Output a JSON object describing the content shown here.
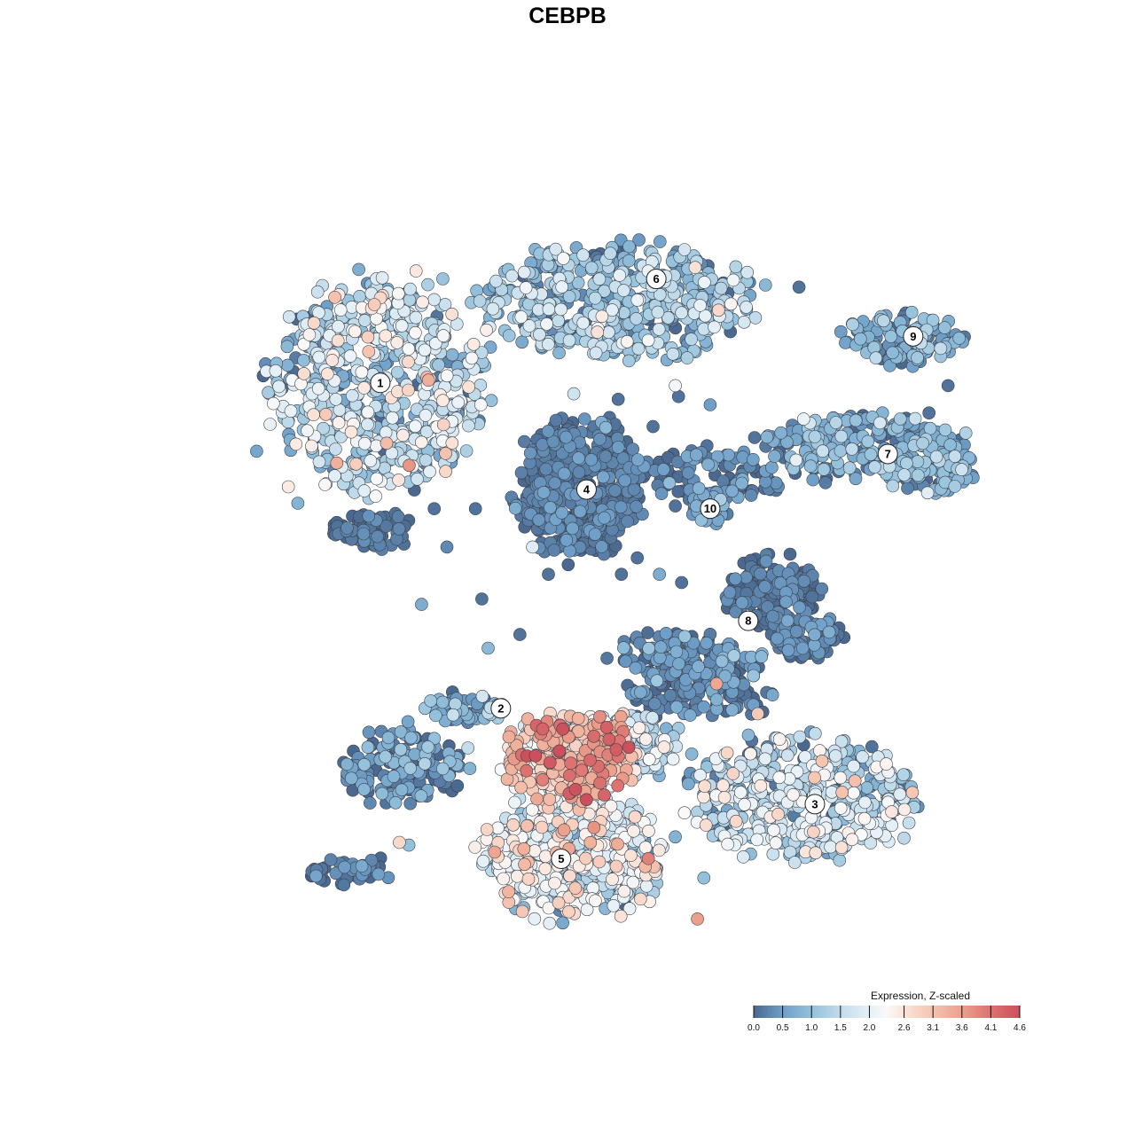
{
  "chart_data": {
    "type": "scatter",
    "title": "CEBPB",
    "xlabel": "",
    "ylabel": "",
    "grid": false,
    "axes_visible": false,
    "legend": {
      "title": "Expression, Z-scaled",
      "placement": "bottom-right",
      "tick_labels": [
        "0.0",
        "0.5",
        "1.0",
        "1.5",
        "2.0",
        "2.6",
        "3.1",
        "3.6",
        "4.1",
        "4.6"
      ],
      "tick_values": [
        0.0,
        0.5,
        1.0,
        1.5,
        2.0,
        2.6,
        3.1,
        3.6,
        4.1,
        4.6
      ],
      "range": [
        0.0,
        4.6
      ]
    },
    "colorscale": [
      {
        "v": 0.0,
        "color": "#4a6890"
      },
      {
        "v": 0.5,
        "color": "#6f9fc8"
      },
      {
        "v": 1.0,
        "color": "#93c0db"
      },
      {
        "v": 1.5,
        "color": "#c2dceb"
      },
      {
        "v": 2.0,
        "color": "#e6f0f7"
      },
      {
        "v": 2.3,
        "color": "#f9f9f9"
      },
      {
        "v": 2.6,
        "color": "#fbe4da"
      },
      {
        "v": 3.1,
        "color": "#f5c3b0"
      },
      {
        "v": 3.6,
        "color": "#eba08c"
      },
      {
        "v": 4.1,
        "color": "#dc7270"
      },
      {
        "v": 4.6,
        "color": "#cb4f5c"
      }
    ],
    "clusters": [
      {
        "label": "1",
        "x": -7.1,
        "y": 7.0
      },
      {
        "label": "2",
        "x": -3.3,
        "y": -4.9
      },
      {
        "label": "3",
        "x": 6.6,
        "y": -8.4
      },
      {
        "label": "4",
        "x": -0.6,
        "y": 3.1
      },
      {
        "label": "5",
        "x": -1.4,
        "y": -10.4
      },
      {
        "label": "6",
        "x": 1.6,
        "y": 10.8
      },
      {
        "label": "7",
        "x": 8.9,
        "y": 4.4
      },
      {
        "label": "8",
        "x": 4.5,
        "y": -1.7
      },
      {
        "label": "9",
        "x": 9.7,
        "y": 8.7
      },
      {
        "label": "10",
        "x": 3.3,
        "y": 2.4
      }
    ],
    "regions": [
      {
        "cluster": "1",
        "cx": -7.1,
        "cy": 7.0,
        "rx": 3.5,
        "ry": 4.1,
        "n": 620,
        "mean": 1.4,
        "sd": 0.7
      },
      {
        "cluster": "1",
        "cx": -7.4,
        "cy": 1.6,
        "rx": 1.4,
        "ry": 0.7,
        "n": 70,
        "mean": 0.1,
        "sd": 0.15
      },
      {
        "cluster": "6",
        "cx": 0.4,
        "cy": 10.0,
        "rx": 4.6,
        "ry": 2.2,
        "n": 520,
        "mean": 1.0,
        "sd": 0.6
      },
      {
        "cluster": "4",
        "cx": -0.8,
        "cy": 3.1,
        "rx": 2.1,
        "ry": 2.7,
        "n": 420,
        "mean": 0.15,
        "sd": 0.2
      },
      {
        "cluster": "10",
        "cx": 3.4,
        "cy": 3.6,
        "rx": 2.2,
        "ry": 1.0,
        "n": 90,
        "mean": 0.25,
        "sd": 0.3
      },
      {
        "cluster": "10",
        "cx": 3.3,
        "cy": 2.4,
        "rx": 0.7,
        "ry": 0.6,
        "n": 30,
        "mean": 0.6,
        "sd": 0.3
      },
      {
        "cluster": "7",
        "cx": 8.2,
        "cy": 4.6,
        "rx": 3.3,
        "ry": 1.3,
        "n": 220,
        "mean": 0.7,
        "sd": 0.5
      },
      {
        "cluster": "7",
        "cx": 10.3,
        "cy": 3.8,
        "rx": 1.6,
        "ry": 0.8,
        "n": 80,
        "mean": 0.8,
        "sd": 0.4
      },
      {
        "cluster": "9",
        "cx": 9.4,
        "cy": 8.6,
        "rx": 2.0,
        "ry": 1.0,
        "n": 130,
        "mean": 0.6,
        "sd": 0.5
      },
      {
        "cluster": "8",
        "cx": 5.2,
        "cy": -0.7,
        "rx": 1.6,
        "ry": 1.5,
        "n": 150,
        "mean": 0.1,
        "sd": 0.2
      },
      {
        "cluster": "8",
        "cx": 6.4,
        "cy": -2.3,
        "rx": 1.3,
        "ry": 0.8,
        "n": 90,
        "mean": 0.15,
        "sd": 0.2
      },
      {
        "cluster": "8",
        "cx": 2.6,
        "cy": -3.0,
        "rx": 2.4,
        "ry": 1.0,
        "n": 130,
        "mean": 0.2,
        "sd": 0.3
      },
      {
        "cluster": "2",
        "cx": -6.3,
        "cy": -7.0,
        "rx": 2.1,
        "ry": 1.5,
        "n": 170,
        "mean": 0.3,
        "sd": 0.5
      },
      {
        "cluster": "2",
        "cx": -4.4,
        "cy": -4.9,
        "rx": 1.4,
        "ry": 0.6,
        "n": 60,
        "mean": 0.6,
        "sd": 0.5
      },
      {
        "cluster": "2",
        "cx": -8.1,
        "cy": -10.8,
        "rx": 1.5,
        "ry": 0.6,
        "n": 40,
        "mean": 0.15,
        "sd": 0.25
      },
      {
        "cluster": "3",
        "cx": 6.2,
        "cy": -8.2,
        "rx": 3.6,
        "ry": 2.4,
        "n": 500,
        "mean": 1.3,
        "sd": 0.7
      },
      {
        "cluster": "3",
        "cx": 3.0,
        "cy": -4.3,
        "rx": 2.4,
        "ry": 1.0,
        "n": 120,
        "mean": 0.2,
        "sd": 0.3
      },
      {
        "cluster": "5",
        "cx": -1.2,
        "cy": -6.7,
        "rx": 2.2,
        "ry": 1.6,
        "n": 350,
        "mean": 2.9,
        "sd": 0.7
      },
      {
        "cluster": "5",
        "cx": -1.1,
        "cy": -10.3,
        "rx": 3.0,
        "ry": 2.4,
        "n": 470,
        "mean": 1.9,
        "sd": 0.7
      },
      {
        "cluster": "5",
        "cx": 0.6,
        "cy": -6.3,
        "rx": 2.0,
        "ry": 1.3,
        "n": 170,
        "mean": 1.6,
        "sd": 0.6
      }
    ],
    "scatter_points": [
      {
        "x": -11.0,
        "y": 4.5,
        "v": 0.6
      },
      {
        "x": -10.0,
        "y": 3.2,
        "v": 2.5
      },
      {
        "x": -9.7,
        "y": 2.6,
        "v": 0.8
      },
      {
        "x": -5.0,
        "y": 1.0,
        "v": 0.3
      },
      {
        "x": -5.4,
        "y": 2.4,
        "v": 0.1
      },
      {
        "x": -4.1,
        "y": 2.4,
        "v": 0.1
      },
      {
        "x": -5.8,
        "y": -1.1,
        "v": 0.7
      },
      {
        "x": -3.9,
        "y": -0.9,
        "v": 0.1
      },
      {
        "x": -2.3,
        "y": 1.0,
        "v": 1.9
      },
      {
        "x": 1.0,
        "y": 0.6,
        "v": 0.1
      },
      {
        "x": 0.5,
        "y": 0.0,
        "v": 0.1
      },
      {
        "x": 1.7,
        "y": 0.0,
        "v": 0.7
      },
      {
        "x": 2.4,
        "y": -0.3,
        "v": 0.1
      },
      {
        "x": 1.5,
        "y": 5.4,
        "v": 0.1
      },
      {
        "x": 2.3,
        "y": 6.5,
        "v": 0.1
      },
      {
        "x": 3.2,
        "y": 4.7,
        "v": 0.1
      },
      {
        "x": 0.4,
        "y": 6.4,
        "v": 0.1
      },
      {
        "x": 3.3,
        "y": 6.2,
        "v": 0.5
      },
      {
        "x": -1.0,
        "y": 6.6,
        "v": 1.7
      },
      {
        "x": 2.2,
        "y": 6.9,
        "v": 2.2
      },
      {
        "x": 6.1,
        "y": 10.5,
        "v": 0.1
      },
      {
        "x": 10.2,
        "y": 5.9,
        "v": 0.1
      },
      {
        "x": 10.8,
        "y": 6.9,
        "v": 0.1
      },
      {
        "x": 2.2,
        "y": 2.5,
        "v": 0.1
      },
      {
        "x": 5.2,
        "y": 3.1,
        "v": 0.1
      },
      {
        "x": -1.8,
        "y": 0.0,
        "v": 0.1
      },
      {
        "x": -3.7,
        "y": -2.7,
        "v": 0.9
      },
      {
        "x": 6.3,
        "y": 4.5,
        "v": 0.8
      },
      {
        "x": 4.7,
        "y": 5.0,
        "v": 0.1
      },
      {
        "x": 8.4,
        "y": -6.3,
        "v": 0.1
      },
      {
        "x": 3.5,
        "y": -4.0,
        "v": 3.5
      },
      {
        "x": 4.8,
        "y": -5.1,
        "v": 3.0
      },
      {
        "x": 3.2,
        "y": -8.5,
        "v": 0.1
      },
      {
        "x": 4.5,
        "y": -9.5,
        "v": 1.6
      },
      {
        "x": 2.2,
        "y": -9.6,
        "v": 0.8
      },
      {
        "x": 3.1,
        "y": -11.1,
        "v": 1.0
      },
      {
        "x": 2.9,
        "y": -12.6,
        "v": 3.6
      },
      {
        "x": -6.2,
        "y": -9.9,
        "v": 1.0
      },
      {
        "x": -6.5,
        "y": -9.8,
        "v": 2.8
      },
      {
        "x": -7.4,
        "y": -10.8,
        "v": 0.1
      },
      {
        "x": -2.7,
        "y": -2.2,
        "v": 0.1
      }
    ],
    "x_range": [
      -13.5,
      12.5
    ],
    "y_range": [
      -14.5,
      15.0
    ]
  }
}
